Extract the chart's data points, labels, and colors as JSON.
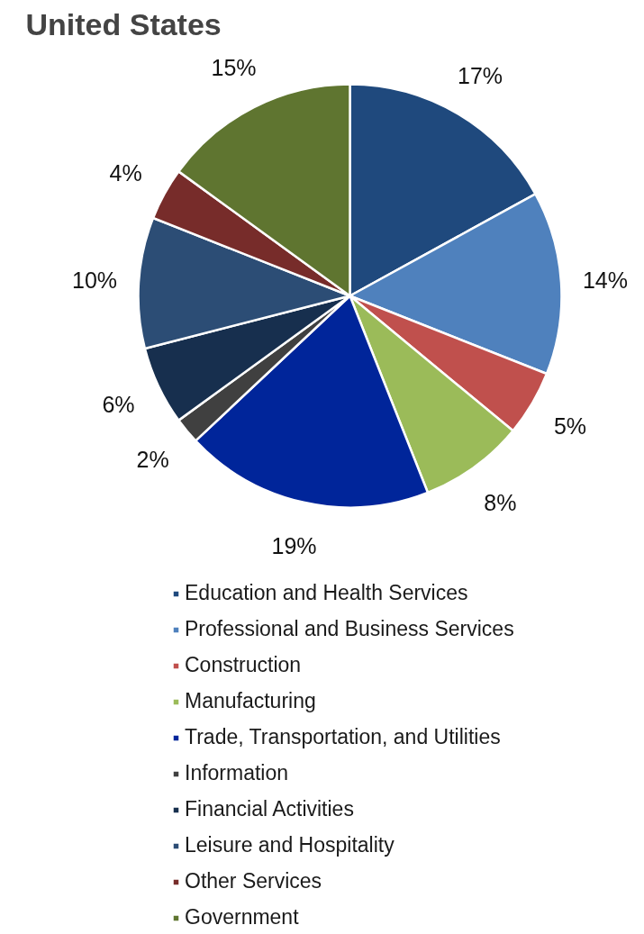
{
  "chart_data": {
    "type": "pie",
    "title": "United States",
    "categories": [
      "Education and Health Services",
      "Professional and Business Services",
      "Construction",
      "Manufacturing",
      "Trade, Transportation, and Utilities",
      "Information",
      "Financial Activities",
      "Leisure and Hospitality",
      "Other Services",
      "Government"
    ],
    "values": [
      17,
      14,
      5,
      8,
      19,
      2,
      6,
      10,
      4,
      15
    ],
    "value_labels": [
      "17%",
      "14%",
      "5%",
      "8%",
      "19%",
      "2%",
      "6%",
      "10%",
      "4%",
      "15%"
    ],
    "colors": [
      "#1f497d",
      "#4f81bd",
      "#c0504d",
      "#9bbb59",
      "#00259a",
      "#404040",
      "#172f4e",
      "#2c4d75",
      "#772c2a",
      "#5f7530"
    ],
    "legend": "bottom"
  }
}
